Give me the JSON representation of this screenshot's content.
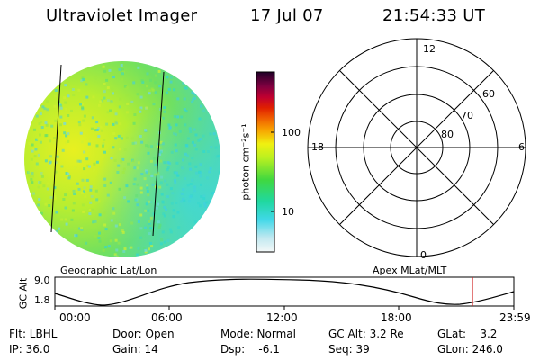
{
  "header": {
    "instrument": "Ultraviolet Imager",
    "date": "17 Jul 07",
    "time": "21:54:33 UT"
  },
  "image": {
    "colorbar_label": "photon cm⁻²s⁻¹",
    "colorbar_ticks": [
      "100",
      "10"
    ]
  },
  "polar": {
    "mlt_labels": {
      "top": "12",
      "bottom": "0",
      "left": "18",
      "right": "6"
    },
    "lat_labels": [
      "60",
      "70",
      "80"
    ]
  },
  "timeline": {
    "left_title": "Geographic Lat/Lon",
    "right_title": "Apex MLat/MLT",
    "ylabel": "GC Alt",
    "yticks": [
      "9.0",
      "1.8"
    ],
    "xticks": [
      "00:00",
      "06:00",
      "12:00",
      "18:00",
      "23:59"
    ],
    "marker_color": "#d02020"
  },
  "footer": {
    "flt": "Flt: LBHL",
    "door": "Door: Open",
    "mode": "Mode: Normal",
    "gcalt": "GC Alt: 3.2 Re",
    "glat": "GLat:    3.2",
    "ip": "IP: 36.0",
    "gain": "Gain: 14",
    "dsp": "Dsp:    -6.1",
    "seq": "Seq: 39",
    "glon": "GLon: 246.0"
  }
}
